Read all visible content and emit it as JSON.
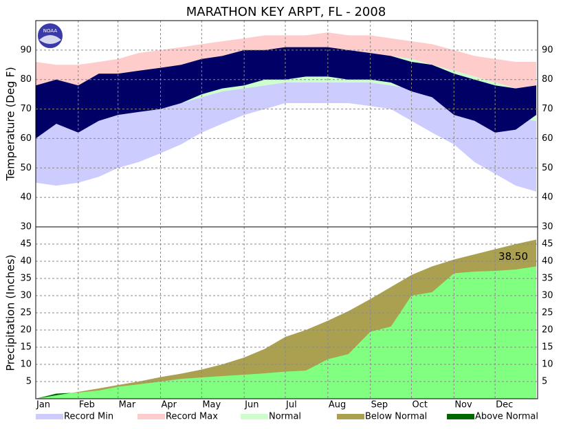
{
  "chart_data": [
    {
      "type": "band",
      "title": "MARATHON KEY ARPT, FL - 2008",
      "logo": "NOAA",
      "ylabel": "Temperature (Deg F)",
      "x": [
        1,
        16,
        32,
        47,
        61,
        76,
        92,
        107,
        122,
        137,
        153,
        168,
        183,
        198,
        214,
        229,
        245,
        260,
        275,
        290,
        306,
        321,
        336,
        351,
        366
      ],
      "xlim": [
        1,
        367
      ],
      "xticks": [
        {
          "value": 1,
          "label": "Jan"
        },
        {
          "value": 32,
          "label": "Feb"
        },
        {
          "value": 61,
          "label": "Mar"
        },
        {
          "value": 92,
          "label": "Apr"
        },
        {
          "value": 122,
          "label": "May"
        },
        {
          "value": 153,
          "label": "Jun"
        },
        {
          "value": 183,
          "label": "Jul"
        },
        {
          "value": 214,
          "label": "Aug"
        },
        {
          "value": 245,
          "label": "Sep"
        },
        {
          "value": 275,
          "label": "Oct"
        },
        {
          "value": 306,
          "label": "Nov"
        },
        {
          "value": 336,
          "label": "Dec"
        }
      ],
      "ylim": [
        30,
        100
      ],
      "yticks": [
        30,
        40,
        50,
        60,
        70,
        80,
        90
      ],
      "grid": true,
      "series": [
        {
          "name": "Record Min",
          "color": "#ccccff",
          "values": [
            45,
            44,
            45,
            47,
            50,
            52,
            55,
            58,
            62,
            65,
            68,
            70,
            72,
            72,
            72,
            72,
            71,
            70,
            66,
            62,
            58,
            52,
            48,
            44,
            42
          ]
        },
        {
          "name": "Record Max",
          "color": "#ffcccc",
          "values": [
            86,
            85,
            85,
            86,
            87,
            89,
            90,
            91,
            92,
            93,
            94,
            95,
            95,
            95,
            96,
            95,
            95,
            94,
            93,
            92,
            90,
            88,
            87,
            86,
            86
          ]
        },
        {
          "name": "Normal",
          "color": "#ccffcc",
          "high": [
            76,
            75,
            76,
            77,
            78,
            80,
            81,
            82,
            84,
            85,
            87,
            88,
            89,
            89,
            89,
            90,
            89,
            88,
            87,
            85,
            83,
            81,
            79,
            77,
            76
          ],
          "low": [
            67,
            66,
            66,
            67,
            68,
            70,
            71,
            72,
            74,
            76,
            77,
            78,
            79,
            79,
            79,
            79,
            79,
            78,
            77,
            75,
            73,
            71,
            69,
            67,
            66
          ]
        },
        {
          "color": "#000066",
          "high": [
            78,
            80,
            78,
            82,
            82,
            83,
            84,
            85,
            87,
            88,
            90,
            90,
            91,
            91,
            91,
            90,
            89,
            88,
            86,
            85,
            82,
            80,
            78,
            77,
            78
          ],
          "low": [
            60,
            65,
            62,
            66,
            68,
            69,
            70,
            72,
            75,
            77,
            78,
            80,
            80,
            81,
            81,
            80,
            80,
            79,
            76,
            74,
            68,
            66,
            62,
            63,
            68
          ]
        }
      ]
    },
    {
      "type": "cumulative-area",
      "ylabel": "Precipitation (Inches)",
      "ylim": [
        0,
        50
      ],
      "yticks": [
        5,
        10,
        15,
        20,
        25,
        30,
        35,
        40,
        45
      ],
      "grid": true,
      "annotation": "38.50",
      "series": [
        {
          "name": "Below Normal",
          "color": "#aaa050",
          "values": [
            0,
            1,
            2,
            3,
            4,
            5,
            6.3,
            7.3,
            8.5,
            10,
            12,
            14.5,
            18,
            20,
            22.7,
            25.5,
            29,
            32.5,
            36,
            38.5,
            40.5,
            42,
            43.5,
            45,
            46.3
          ]
        },
        {
          "name": "Above Normal",
          "color": "#006600",
          "fill_color": "#80ff80",
          "values": [
            0,
            1.5,
            1.8,
            2.4,
            3.5,
            4.2,
            5,
            5.8,
            6.2,
            6.6,
            7,
            7.4,
            7.9,
            8.2,
            11.5,
            13,
            19.5,
            21,
            30,
            31,
            36.5,
            37,
            37.2,
            37.6,
            38.5
          ]
        }
      ]
    }
  ]
}
